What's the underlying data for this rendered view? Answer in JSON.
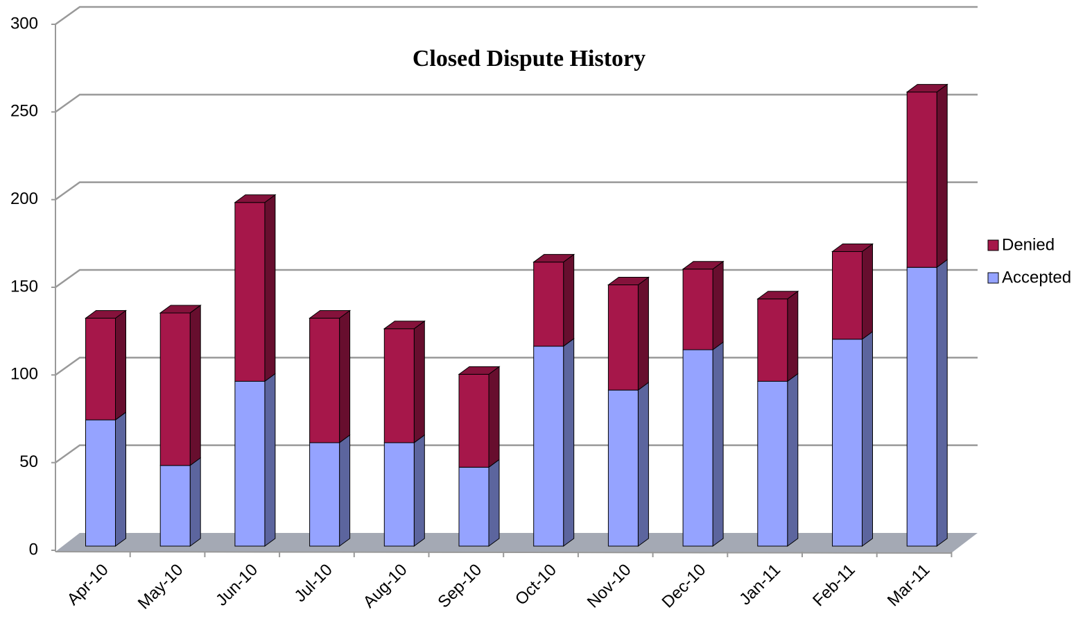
{
  "chart_data": {
    "type": "bar3d_stacked",
    "title": "Closed Dispute History",
    "categories": [
      "Apr-10",
      "May-10",
      "Jun-10",
      "Jul-10",
      "Aug-10",
      "Sep-10",
      "Oct-10",
      "Nov-10",
      "Dec-10",
      "Jan-11",
      "Feb-11",
      "Mar-11"
    ],
    "series": [
      {
        "name": "Accepted",
        "color": "#95a3ff",
        "values": [
          72,
          46,
          94,
          59,
          59,
          45,
          114,
          89,
          112,
          94,
          118,
          159
        ]
      },
      {
        "name": "Denied",
        "color": "#a6174a",
        "values": [
          58,
          87,
          102,
          71,
          65,
          53,
          48,
          60,
          46,
          47,
          50,
          100
        ]
      }
    ],
    "ylim": [
      0,
      300
    ],
    "yticks": [
      0,
      50,
      100,
      150,
      200,
      250,
      300
    ],
    "grid": true,
    "legend": "right"
  }
}
